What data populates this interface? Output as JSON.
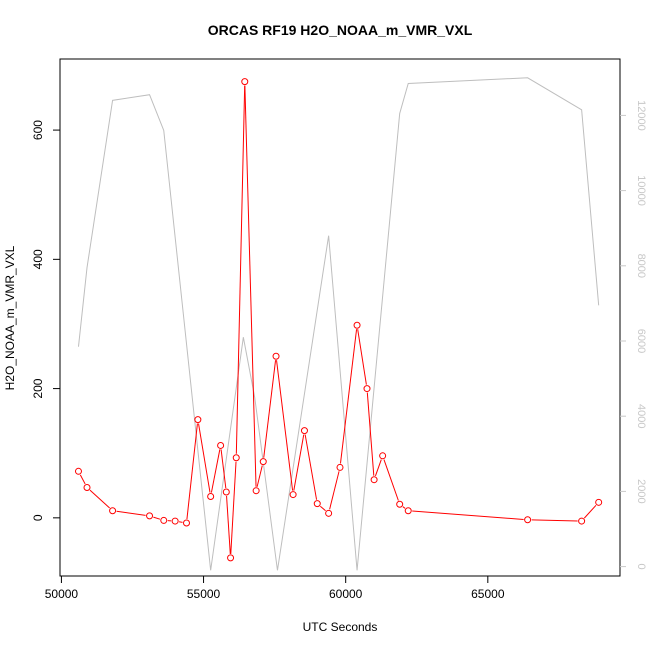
{
  "chart_data": {
    "type": "line",
    "title": "ORCAS RF19 H2O_NOAA_m_VMR_VXL",
    "xlabel": "UTC Seconds",
    "ylabel": "H2O_NOAA_m_VMR_VXL",
    "y2label": "",
    "xlim": [
      49950,
      69650
    ],
    "ylim": [
      -90,
      710
    ],
    "y2lim": [
      -250,
      13500
    ],
    "x_ticks": [
      50000,
      55000,
      60000,
      65000
    ],
    "y_ticks": [
      0,
      200,
      400,
      600
    ],
    "y2_ticks": [
      0,
      2000,
      4000,
      6000,
      8000,
      10000,
      12000
    ],
    "grid": false,
    "series": [
      {
        "axis": "left",
        "style": "line-with-circles",
        "color": "#ff0000",
        "x": [
          50600,
          50900,
          51800,
          53100,
          53600,
          54000,
          54400,
          54800,
          55250,
          55600,
          55800,
          55950,
          56150,
          56450,
          56850,
          57100,
          57550,
          58150,
          58550,
          59000,
          59400,
          59800,
          60400,
          60750,
          61000,
          61300,
          61900,
          62200,
          66400,
          68300,
          68900
        ],
        "y": [
          72,
          47,
          11,
          3,
          -4,
          -5,
          -8,
          152,
          33,
          112,
          40,
          -62,
          93,
          675,
          42,
          87,
          250,
          36,
          135,
          22,
          7,
          78,
          298,
          200,
          59,
          96,
          21,
          11,
          -3,
          -5,
          24
        ]
      },
      {
        "axis": "right",
        "style": "line",
        "color": "#bebebe",
        "x": [
          50600,
          50900,
          51800,
          53100,
          53600,
          55250,
          56400,
          56800,
          57600,
          59400,
          60400,
          61900,
          62200,
          66400,
          68300,
          68900
        ],
        "y": [
          5850,
          7950,
          12400,
          12550,
          11600,
          -100,
          6100,
          4500,
          -100,
          8800,
          -100,
          12050,
          12850,
          13000,
          12150,
          6950
        ]
      }
    ]
  }
}
